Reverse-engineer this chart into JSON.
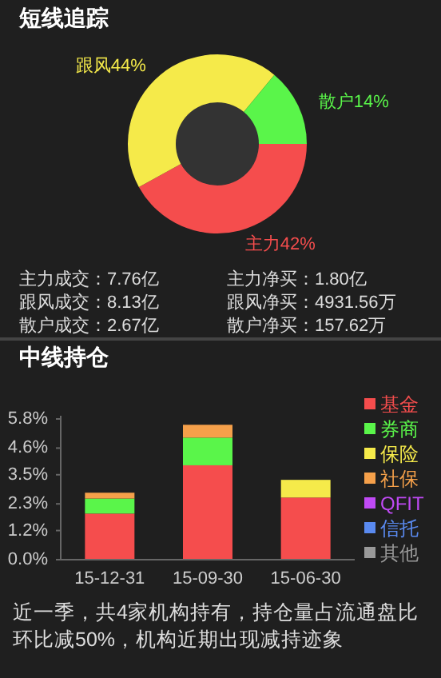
{
  "chart_data": [
    {
      "type": "donut",
      "title": "短线追踪",
      "categories": [
        "主力",
        "跟风",
        "散户"
      ],
      "values": [
        42,
        44,
        14
      ],
      "value_labels": [
        "42%",
        "44%",
        "14%"
      ],
      "colors": [
        "#f54d4d",
        "#f5ea4a",
        "#5af54a"
      ],
      "annotations": [
        "主力成交：7.76亿",
        "主力净买：1.80亿",
        "跟风成交：8.13亿",
        "跟风净买：4931.56万",
        "散户成交：2.67亿",
        "散户净买：157.62万"
      ]
    },
    {
      "type": "bar",
      "stacked": true,
      "title": "中线持仓",
      "categories": [
        "15-12-31",
        "15-09-30",
        "15-06-30"
      ],
      "series": [
        {
          "name": "基金",
          "color": "#f54d4d",
          "values": [
            1.9,
            3.89,
            2.56
          ]
        },
        {
          "name": "券商",
          "color": "#5af54a",
          "values": [
            0.62,
            1.14,
            null
          ]
        },
        {
          "name": "保险",
          "color": "#f5ea4a",
          "values": [
            null,
            null,
            0.73
          ]
        },
        {
          "name": "社保",
          "color": "#f5a04a",
          "values": [
            0.24,
            0.53,
            null
          ]
        },
        {
          "name": "QFIT",
          "color": "#c04af5",
          "values": [
            null,
            null,
            null
          ]
        },
        {
          "name": "信托",
          "color": "#5a8af0",
          "values": [
            null,
            null,
            null
          ]
        },
        {
          "name": "其他",
          "color": "#999999",
          "values": [
            null,
            null,
            null
          ]
        }
      ],
      "ylim": [
        0,
        5.8
      ],
      "yticks": [
        {
          "value": 0,
          "label": "0.0%"
        },
        {
          "value": 1.2,
          "label": "1.2%"
        },
        {
          "value": 2.3,
          "label": "2.3%"
        },
        {
          "value": 3.5,
          "label": "3.5%"
        },
        {
          "value": 4.6,
          "label": "4.6%"
        },
        {
          "value": 5.8,
          "label": "5.8%"
        }
      ],
      "legend": "right",
      "grid": false,
      "annotations": [
        "近一季，共4家机构持有，持仓量占流通盘比环比减50%，机构近期出现减持迹象"
      ]
    }
  ]
}
